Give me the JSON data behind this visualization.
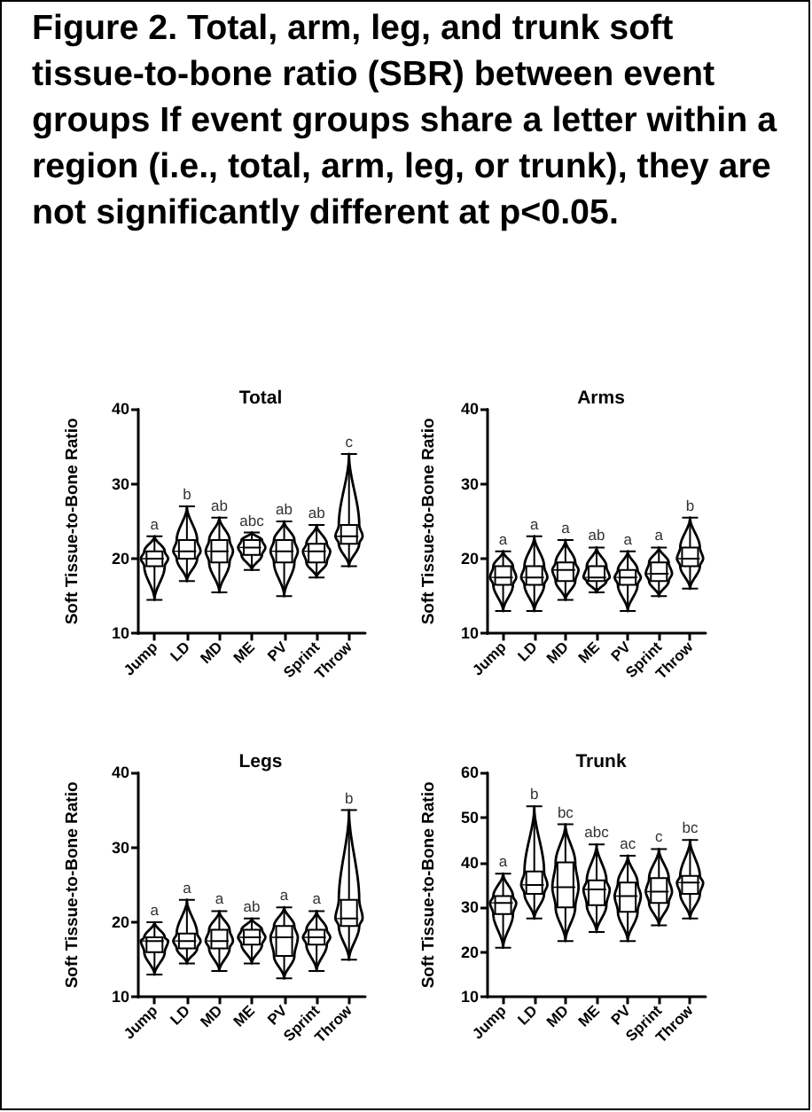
{
  "chart_data": [
    {
      "type": "other",
      "title": "Figure 2. Total, arm, leg, and trunk soft tissue-to-bone ratio (SBR) between event groups If event groups share a letter within a region (i.e., total, arm, leg, or trunk), they are not significantly different at p<0.05."
    },
    {
      "type": "box",
      "title": "Total",
      "ylabel": "Soft Tissue-to-Bone Ratio",
      "color": "#000000",
      "categories": [
        "Jump",
        "LD",
        "MD",
        "ME",
        "PV",
        "Sprint",
        "Throw"
      ],
      "boxes": [
        {
          "low": 14.5,
          "q1": 19,
          "median": 20,
          "q3": 21,
          "high": 23
        },
        {
          "low": 17,
          "q1": 20,
          "median": 21,
          "q3": 22.5,
          "high": 27
        },
        {
          "low": 15.5,
          "q1": 19.5,
          "median": 21,
          "q3": 22.5,
          "high": 25.5
        },
        {
          "low": 18.5,
          "q1": 20.5,
          "median": 21.5,
          "q3": 22.5,
          "high": 23.5
        },
        {
          "low": 15,
          "q1": 19.5,
          "median": 21,
          "q3": 22.5,
          "high": 25
        },
        {
          "low": 17.5,
          "q1": 19.5,
          "median": 21,
          "q3": 22,
          "high": 24.5
        },
        {
          "low": 19,
          "q1": 22,
          "median": 23,
          "q3": 24.5,
          "high": 34
        }
      ],
      "ylim": [
        10,
        40
      ],
      "yticks": [
        10,
        20,
        30,
        40
      ],
      "annotations": [
        "a",
        "b",
        "ab",
        "abc",
        "ab",
        "ab",
        "c"
      ]
    },
    {
      "type": "box",
      "title": "Arms",
      "ylabel": "Soft Tissue-to-Bone Ratio",
      "color": "#000000",
      "categories": [
        "Jump",
        "LD",
        "MD",
        "ME",
        "PV",
        "Sprint",
        "Throw"
      ],
      "boxes": [
        {
          "low": 13,
          "q1": 16.5,
          "median": 17.5,
          "q3": 19,
          "high": 21
        },
        {
          "low": 13,
          "q1": 16.5,
          "median": 17.5,
          "q3": 19,
          "high": 23
        },
        {
          "low": 14.5,
          "q1": 17,
          "median": 18.5,
          "q3": 19.5,
          "high": 22.5
        },
        {
          "low": 15.5,
          "q1": 17,
          "median": 17.5,
          "q3": 19,
          "high": 21.5
        },
        {
          "low": 13,
          "q1": 16.5,
          "median": 17.5,
          "q3": 18.5,
          "high": 21
        },
        {
          "low": 15,
          "q1": 17,
          "median": 18,
          "q3": 19.5,
          "high": 21.5
        },
        {
          "low": 16,
          "q1": 19,
          "median": 20,
          "q3": 21.5,
          "high": 25.5
        }
      ],
      "ylim": [
        10,
        40
      ],
      "yticks": [
        10,
        20,
        30,
        40
      ],
      "annotations": [
        "a",
        "a",
        "a",
        "ab",
        "a",
        "a",
        "b"
      ]
    },
    {
      "type": "box",
      "title": "Legs",
      "ylabel": "Soft Tissue-to-Bone Ratio",
      "color": "#000000",
      "categories": [
        "Jump",
        "LD",
        "MD",
        "ME",
        "PV",
        "Sprint",
        "Throw"
      ],
      "boxes": [
        {
          "low": 13,
          "q1": 16,
          "median": 17.5,
          "q3": 18,
          "high": 20
        },
        {
          "low": 14.5,
          "q1": 16.5,
          "median": 17.5,
          "q3": 18.5,
          "high": 23
        },
        {
          "low": 13.5,
          "q1": 16.5,
          "median": 17.5,
          "q3": 19,
          "high": 21.5
        },
        {
          "low": 14.5,
          "q1": 17,
          "median": 18,
          "q3": 19,
          "high": 20.5
        },
        {
          "low": 12.5,
          "q1": 15.5,
          "median": 18,
          "q3": 19.5,
          "high": 22
        },
        {
          "low": 13.5,
          "q1": 17,
          "median": 18,
          "q3": 19,
          "high": 21.5
        },
        {
          "low": 15,
          "q1": 19.5,
          "median": 20.5,
          "q3": 23,
          "high": 35
        }
      ],
      "ylim": [
        10,
        40
      ],
      "yticks": [
        10,
        20,
        30,
        40
      ],
      "annotations": [
        "a",
        "a",
        "a",
        "ab",
        "a",
        "a",
        "b"
      ]
    },
    {
      "type": "box",
      "title": "Trunk",
      "ylabel": "Soft Tissue-to-Bone Ratio",
      "color": "#000000",
      "categories": [
        "Jump",
        "LD",
        "MD",
        "ME",
        "PV",
        "Sprint",
        "Throw"
      ],
      "boxes": [
        {
          "low": 21,
          "q1": 28.5,
          "median": 31,
          "q3": 32.5,
          "high": 37.5
        },
        {
          "low": 27.5,
          "q1": 33,
          "median": 35,
          "q3": 38,
          "high": 52.5
        },
        {
          "low": 22.5,
          "q1": 30,
          "median": 34.5,
          "q3": 40,
          "high": 48.5
        },
        {
          "low": 24.5,
          "q1": 30.5,
          "median": 34,
          "q3": 36,
          "high": 44
        },
        {
          "low": 22.5,
          "q1": 29,
          "median": 32.5,
          "q3": 35.5,
          "high": 41.5
        },
        {
          "low": 26,
          "q1": 31,
          "median": 33.5,
          "q3": 36.5,
          "high": 43
        },
        {
          "low": 27.5,
          "q1": 33,
          "median": 35.5,
          "q3": 37,
          "high": 45
        }
      ],
      "ylim": [
        10,
        60
      ],
      "yticks": [
        10,
        20,
        30,
        40,
        50,
        60
      ],
      "annotations": [
        "a",
        "b",
        "bc",
        "abc",
        "ac",
        "c",
        "bc"
      ]
    }
  ]
}
